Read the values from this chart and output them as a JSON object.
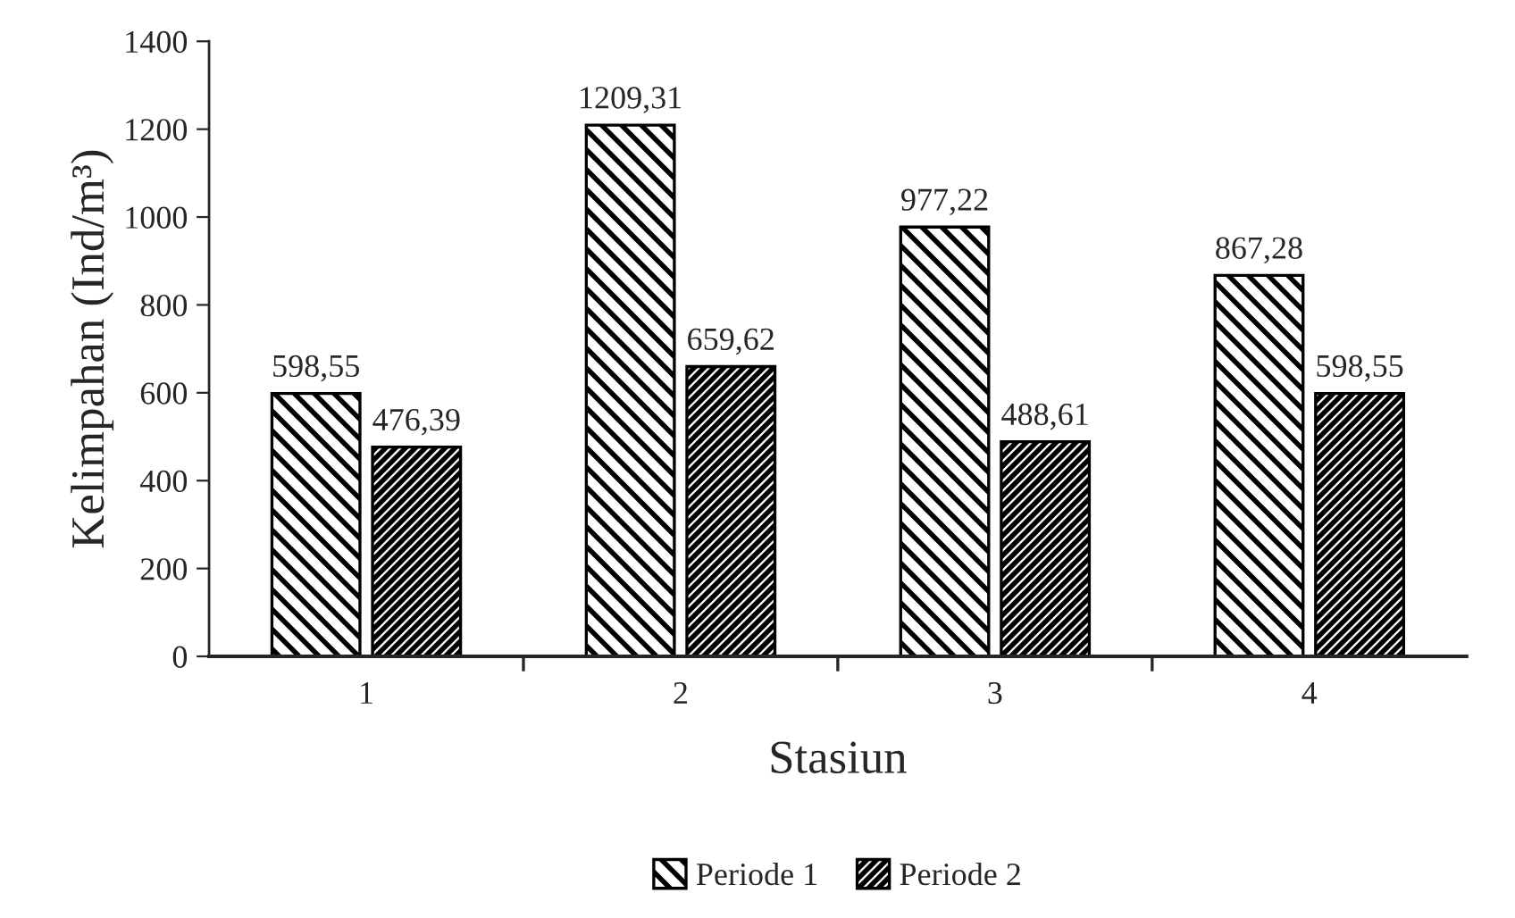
{
  "chart_data": {
    "type": "bar",
    "xlabel": "Stasiun",
    "ylabel": "Kelimpahan (Ind/m³)",
    "categories": [
      "1",
      "2",
      "3",
      "4"
    ],
    "series": [
      {
        "name": "Periode 1",
        "color": "#000000",
        "values": [
          598.55,
          1209.31,
          977.22,
          867.28
        ],
        "value_labels": [
          "598,55",
          "1209,31",
          "977,22",
          "867,28"
        ]
      },
      {
        "name": "Periode 2",
        "color": "#000000",
        "values": [
          476.39,
          659.62,
          488.61,
          598.55
        ],
        "value_labels": [
          "476,39",
          "659,62",
          "488,61",
          "598,55"
        ]
      }
    ],
    "ylim": [
      0,
      1400
    ],
    "yticks": [
      0,
      200,
      400,
      600,
      800,
      1000,
      1200,
      1400
    ],
    "grid": false,
    "legend": "bottom"
  }
}
